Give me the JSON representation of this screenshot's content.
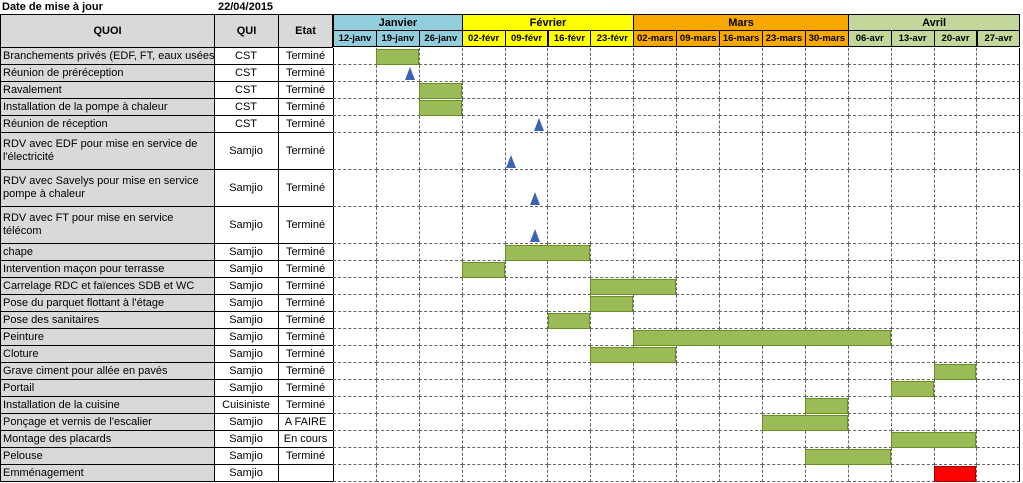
{
  "header": {
    "label": "Date de mise à jour",
    "date": "22/04/2015"
  },
  "columns": {
    "quoi": "QUOI",
    "qui": "QUI",
    "etat": "Etat"
  },
  "colors": {
    "bar": "#9bbb59",
    "bar_red": "#ff0000",
    "milestone": "#3c64b4",
    "header_gray": "#d9d9d9"
  },
  "months": [
    {
      "label": "Janvier",
      "weeks": 3,
      "color": "#92cddc"
    },
    {
      "label": "Février",
      "weeks": 4,
      "color": "#ffff00"
    },
    {
      "label": "Mars",
      "weeks": 5,
      "color": "#f8a800"
    },
    {
      "label": "Avril",
      "weeks": 4,
      "color": "#c4d79b"
    }
  ],
  "weeks": [
    "12-janv",
    "19-janv",
    "26-janv",
    "02-févr",
    "09-févr",
    "16-févr",
    "23-févr",
    "02-mars",
    "09-mars",
    "16-mars",
    "23-mars",
    "30-mars",
    "06-avr",
    "13-avr",
    "20-avr",
    "27-avr"
  ],
  "tasks": [
    {
      "quoi": "Branchements privés (EDF, FT, eaux usées)",
      "qui": "CST",
      "etat": "Terminé",
      "lines": 1,
      "bars": [
        [
          1,
          1
        ]
      ]
    },
    {
      "quoi": "Réunion de préréception",
      "qui": "CST",
      "etat": "Terminé",
      "lines": 1,
      "milestones": [
        1.8
      ]
    },
    {
      "quoi": "Ravalement",
      "qui": "CST",
      "etat": "Terminé",
      "lines": 1,
      "bars": [
        [
          2,
          2
        ]
      ]
    },
    {
      "quoi": "Installation de la pompe à chaleur",
      "qui": "CST",
      "etat": "Terminé",
      "lines": 1,
      "bars": [
        [
          2,
          2
        ]
      ]
    },
    {
      "quoi": "Réunion de réception",
      "qui": "CST",
      "etat": "Terminé",
      "lines": 1,
      "milestones": [
        4.8
      ]
    },
    {
      "quoi": "RDV avec EDF pour mise en service de l'électricité",
      "qui": "Samjio",
      "etat": "Terminé",
      "lines": 2,
      "milestones": [
        4.15
      ]
    },
    {
      "quoi": "RDV avec Savelys pour mise en service pompe à chaleur",
      "qui": "Samjio",
      "etat": "Terminé",
      "lines": 2,
      "milestones": [
        4.7
      ]
    },
    {
      "quoi": "RDV avec FT pour mise en service télécom",
      "qui": "Samjio",
      "etat": "Terminé",
      "lines": 2,
      "milestones": [
        4.7
      ]
    },
    {
      "quoi": "chape",
      "qui": "Samjio",
      "etat": "Terminé",
      "lines": 1,
      "bars": [
        [
          4,
          5
        ]
      ]
    },
    {
      "quoi": "Intervention maçon pour terrasse",
      "qui": "Samjio",
      "etat": "Terminé",
      "lines": 1,
      "bars": [
        [
          3,
          3
        ]
      ]
    },
    {
      "quoi": "Carrelage RDC et faïences SDB et WC",
      "qui": "Samjio",
      "etat": "Terminé",
      "lines": 1,
      "bars": [
        [
          6,
          7
        ]
      ]
    },
    {
      "quoi": "Pose du parquet flottant à l'étage",
      "qui": "Samjio",
      "etat": "Terminé",
      "lines": 1,
      "bars": [
        [
          6,
          6
        ]
      ]
    },
    {
      "quoi": "Pose des sanitaires",
      "qui": "Samjio",
      "etat": "Terminé",
      "lines": 1,
      "bars": [
        [
          5,
          5
        ]
      ]
    },
    {
      "quoi": "Peinture",
      "qui": "Samjio",
      "etat": "Terminé",
      "lines": 1,
      "bars": [
        [
          7,
          12
        ]
      ]
    },
    {
      "quoi": "Cloture",
      "qui": "Samjio",
      "etat": "Terminé",
      "lines": 1,
      "bars": [
        [
          6,
          7
        ]
      ]
    },
    {
      "quoi": "Grave ciment pour allée en pavés",
      "qui": "Samjio",
      "etat": "Terminé",
      "lines": 1,
      "bars": [
        [
          14,
          14
        ]
      ]
    },
    {
      "quoi": "Portail",
      "qui": "Samjio",
      "etat": "Terminé",
      "lines": 1,
      "bars": [
        [
          13,
          13
        ]
      ]
    },
    {
      "quoi": "Installation de la cuisine",
      "qui": "Cuisiniste",
      "etat": "Terminé",
      "lines": 1,
      "bars": [
        [
          11,
          11
        ]
      ]
    },
    {
      "quoi": "Ponçage et vernis de l'escalier",
      "qui": "Samjio",
      "etat": "A FAIRE",
      "lines": 1,
      "bars": [
        [
          10,
          11
        ]
      ]
    },
    {
      "quoi": "Montage des placards",
      "qui": "Samjio",
      "etat": "En cours",
      "lines": 1,
      "bars": [
        [
          13,
          14
        ]
      ]
    },
    {
      "quoi": "Pelouse",
      "qui": "Samjio",
      "etat": "Terminé",
      "lines": 1,
      "bars": [
        [
          11,
          12
        ]
      ]
    },
    {
      "quoi": "Emménagement",
      "qui": "Samjio",
      "etat": "",
      "lines": 1,
      "bars_red": [
        [
          14,
          14
        ]
      ]
    }
  ]
}
